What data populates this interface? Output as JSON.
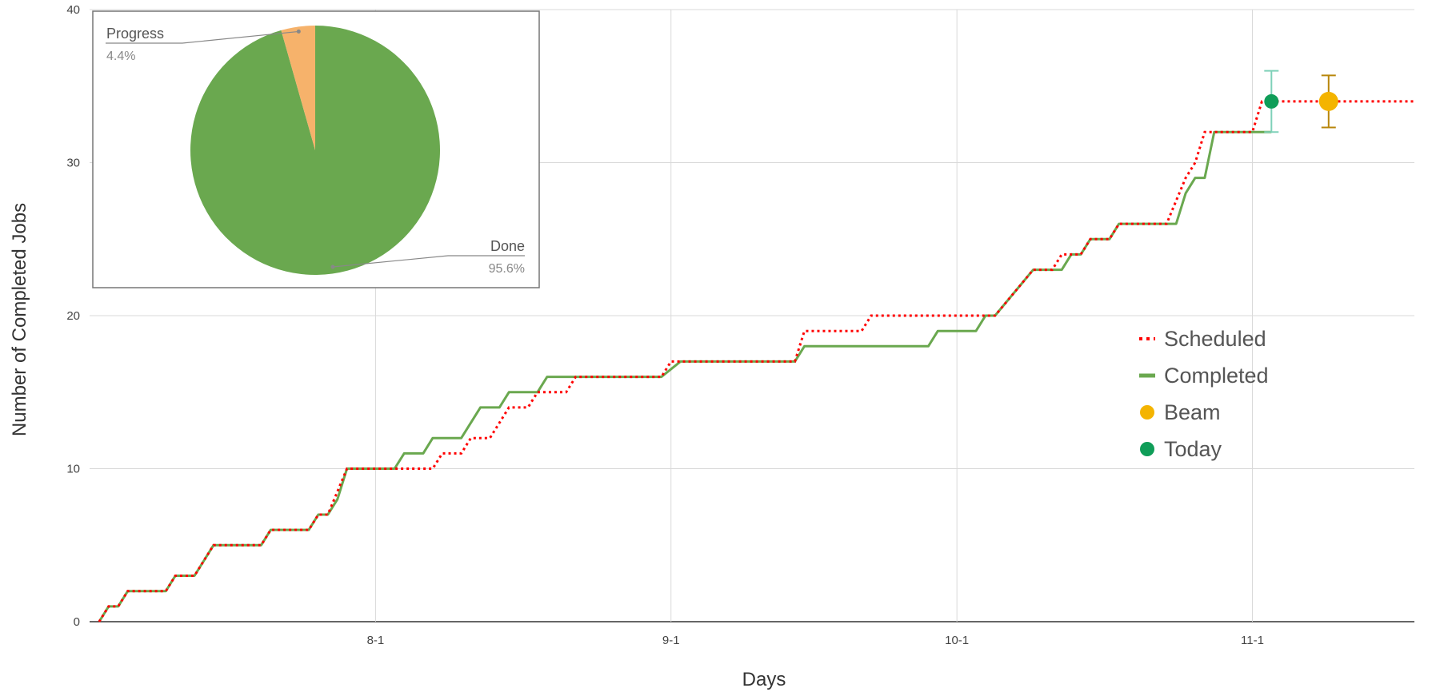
{
  "chart_data": [
    {
      "type": "line",
      "title": "",
      "xlabel": "Days",
      "ylabel": "Number of Completed Jobs",
      "ylim": [
        0,
        40
      ],
      "y_ticks": [
        "0",
        "10",
        "20",
        "30",
        "40"
      ],
      "x_ticks": [
        {
          "label": "8-1",
          "date": "2019-08-01"
        },
        {
          "label": "9-1",
          "date": "2019-09-01"
        },
        {
          "label": "10-1",
          "date": "2019-10-01"
        },
        {
          "label": "11-1",
          "date": "2019-11-01"
        }
      ],
      "xlim": [
        "2019-07-02",
        "2019-11-18"
      ],
      "grid": true,
      "legend_position": "right",
      "series": [
        {
          "name": "Scheduled",
          "color": "#ff0000",
          "style": "dotted",
          "points": [
            [
              "2019-07-03",
              0
            ],
            [
              "2019-07-04",
              1
            ],
            [
              "2019-07-05",
              1
            ],
            [
              "2019-07-06",
              2
            ],
            [
              "2019-07-10",
              2
            ],
            [
              "2019-07-11",
              3
            ],
            [
              "2019-07-13",
              3
            ],
            [
              "2019-07-15",
              5
            ],
            [
              "2019-07-20",
              5
            ],
            [
              "2019-07-21",
              6
            ],
            [
              "2019-07-25",
              6
            ],
            [
              "2019-07-26",
              7
            ],
            [
              "2019-07-27",
              7
            ],
            [
              "2019-07-29",
              10
            ],
            [
              "2019-08-07",
              10
            ],
            [
              "2019-08-08",
              11
            ],
            [
              "2019-08-10",
              11
            ],
            [
              "2019-08-11",
              12
            ],
            [
              "2019-08-13",
              12
            ],
            [
              "2019-08-15",
              14
            ],
            [
              "2019-08-17",
              14
            ],
            [
              "2019-08-18",
              15
            ],
            [
              "2019-08-21",
              15
            ],
            [
              "2019-08-22",
              16
            ],
            [
              "2019-08-31",
              16
            ],
            [
              "2019-09-01",
              17
            ],
            [
              "2019-09-14",
              17
            ],
            [
              "2019-09-15",
              19
            ],
            [
              "2019-09-21",
              19
            ],
            [
              "2019-09-22",
              20
            ],
            [
              "2019-10-05",
              20
            ],
            [
              "2019-10-09",
              23
            ],
            [
              "2019-10-11",
              23
            ],
            [
              "2019-10-12",
              24
            ],
            [
              "2019-10-14",
              24
            ],
            [
              "2019-10-15",
              25
            ],
            [
              "2019-10-17",
              25
            ],
            [
              "2019-10-18",
              26
            ],
            [
              "2019-10-23",
              26
            ],
            [
              "2019-10-25",
              29
            ],
            [
              "2019-10-26",
              30
            ],
            [
              "2019-10-27",
              32
            ],
            [
              "2019-11-01",
              32
            ],
            [
              "2019-11-02",
              34
            ],
            [
              "2019-11-18",
              34
            ]
          ]
        },
        {
          "name": "Completed",
          "color": "#6aa84f",
          "style": "solid",
          "points": [
            [
              "2019-07-03",
              0
            ],
            [
              "2019-07-04",
              1
            ],
            [
              "2019-07-05",
              1
            ],
            [
              "2019-07-06",
              2
            ],
            [
              "2019-07-10",
              2
            ],
            [
              "2019-07-11",
              3
            ],
            [
              "2019-07-13",
              3
            ],
            [
              "2019-07-15",
              5
            ],
            [
              "2019-07-20",
              5
            ],
            [
              "2019-07-21",
              6
            ],
            [
              "2019-07-25",
              6
            ],
            [
              "2019-07-26",
              7
            ],
            [
              "2019-07-27",
              7
            ],
            [
              "2019-07-28",
              8
            ],
            [
              "2019-07-29",
              10
            ],
            [
              "2019-08-03",
              10
            ],
            [
              "2019-08-04",
              11
            ],
            [
              "2019-08-06",
              11
            ],
            [
              "2019-08-07",
              12
            ],
            [
              "2019-08-10",
              12
            ],
            [
              "2019-08-12",
              14
            ],
            [
              "2019-08-14",
              14
            ],
            [
              "2019-08-15",
              15
            ],
            [
              "2019-08-18",
              15
            ],
            [
              "2019-08-19",
              16
            ],
            [
              "2019-08-31",
              16
            ],
            [
              "2019-09-02",
              17
            ],
            [
              "2019-09-14",
              17
            ],
            [
              "2019-09-15",
              18
            ],
            [
              "2019-09-28",
              18
            ],
            [
              "2019-09-29",
              19
            ],
            [
              "2019-10-03",
              19
            ],
            [
              "2019-10-04",
              20
            ],
            [
              "2019-10-05",
              20
            ],
            [
              "2019-10-09",
              23
            ],
            [
              "2019-10-12",
              23
            ],
            [
              "2019-10-13",
              24
            ],
            [
              "2019-10-14",
              24
            ],
            [
              "2019-10-15",
              25
            ],
            [
              "2019-10-17",
              25
            ],
            [
              "2019-10-18",
              26
            ],
            [
              "2019-10-24",
              26
            ],
            [
              "2019-10-25",
              28
            ],
            [
              "2019-10-26",
              29
            ],
            [
              "2019-10-27",
              29
            ],
            [
              "2019-10-28",
              32
            ],
            [
              "2019-11-03",
              32
            ]
          ]
        },
        {
          "name": "Beam",
          "color": "#f4b400",
          "style": "marker",
          "points": [
            [
              "2019-11-09",
              34
            ]
          ],
          "error": [
            32.3,
            35.7
          ]
        },
        {
          "name": "Today",
          "color": "#0f9d58",
          "style": "marker",
          "points": [
            [
              "2019-11-03",
              34
            ]
          ],
          "error": [
            32,
            36
          ]
        }
      ]
    },
    {
      "type": "pie",
      "slices": [
        {
          "name": "Done",
          "percent_label": "95.6%",
          "value": 95.6,
          "color": "#6aa84f"
        },
        {
          "name": "Progress",
          "percent_label": "4.4%",
          "value": 4.4,
          "color": "#f6b26b"
        }
      ]
    }
  ]
}
